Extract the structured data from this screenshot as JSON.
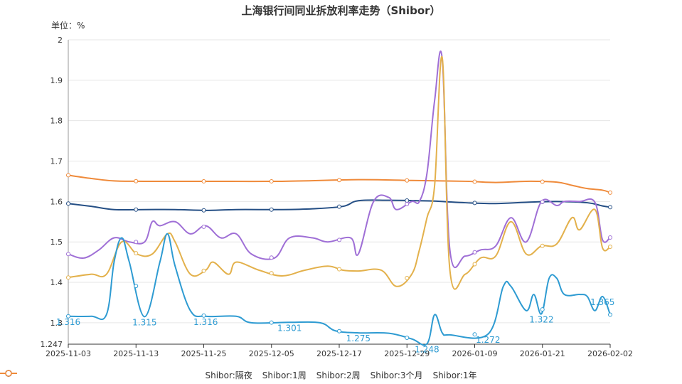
{
  "chart_data": {
    "type": "line",
    "title": "上海银行间同业拆放利率走势（Shibor）",
    "unit_label": "单位：%",
    "ylim": [
      1.247,
      2.0
    ],
    "yticks": [
      "1.247",
      "1.3",
      "1.4",
      "1.5",
      "1.6",
      "1.7",
      "1.8",
      "1.9",
      "2"
    ],
    "xticks": [
      "2025-11-03",
      "2025-11-13",
      "2025-11-25",
      "2025-12-05",
      "2025-12-17",
      "2025-12-29",
      "2026-01-09",
      "2026-01-21",
      "2026-02-02"
    ],
    "xlim_index": [
      0,
      64
    ],
    "series": [
      {
        "name": "Shibor:隔夜",
        "color": "#2e9bd2",
        "points": [
          [
            0,
            1.316
          ],
          [
            3,
            1.316
          ],
          [
            5,
            1.32
          ],
          [
            6,
            1.45
          ],
          [
            7,
            1.51
          ],
          [
            8,
            1.45
          ],
          [
            10,
            1.315
          ],
          [
            12,
            1.45
          ],
          [
            13,
            1.52
          ],
          [
            14,
            1.44
          ],
          [
            16,
            1.33
          ],
          [
            18,
            1.316
          ],
          [
            22,
            1.316
          ],
          [
            24,
            1.3
          ],
          [
            29,
            1.301
          ],
          [
            33,
            1.3
          ],
          [
            35,
            1.28
          ],
          [
            38,
            1.275
          ],
          [
            42,
            1.274
          ],
          [
            45,
            1.26
          ],
          [
            47,
            1.248
          ],
          [
            48,
            1.32
          ],
          [
            49,
            1.275
          ],
          [
            50,
            1.27
          ],
          [
            55,
            1.272
          ],
          [
            57,
            1.39
          ],
          [
            58,
            1.39
          ],
          [
            60,
            1.33
          ],
          [
            61,
            1.37
          ],
          [
            62,
            1.322
          ],
          [
            63,
            1.41
          ],
          [
            64,
            1.41
          ],
          [
            65,
            1.37
          ],
          [
            67,
            1.37
          ],
          [
            68,
            1.365
          ],
          [
            69,
            1.33
          ],
          [
            70,
            1.365
          ],
          [
            71,
            1.32
          ]
        ],
        "labels": [
          [
            0,
            1.316,
            "1.316"
          ],
          [
            10,
            1.315,
            "1.315"
          ],
          [
            18,
            1.316,
            "1.316"
          ],
          [
            29,
            1.301,
            "1.301"
          ],
          [
            38,
            1.275,
            "1.275"
          ],
          [
            47,
            1.248,
            "1.248"
          ],
          [
            55,
            1.272,
            "1.272"
          ],
          [
            62,
            1.322,
            "1.322"
          ],
          [
            70,
            1.365,
            "1.365"
          ]
        ]
      },
      {
        "name": "Shibor:1周",
        "color": "#e3b14c",
        "points": [
          [
            0,
            1.412
          ],
          [
            3,
            1.42
          ],
          [
            5,
            1.42
          ],
          [
            7,
            1.5
          ],
          [
            9,
            1.47
          ],
          [
            11,
            1.47
          ],
          [
            13,
            1.52
          ],
          [
            14,
            1.5
          ],
          [
            16,
            1.42
          ],
          [
            18,
            1.43
          ],
          [
            19,
            1.45
          ],
          [
            21,
            1.42
          ],
          [
            22,
            1.45
          ],
          [
            25,
            1.43
          ],
          [
            28,
            1.416
          ],
          [
            31,
            1.43
          ],
          [
            34,
            1.44
          ],
          [
            36,
            1.43
          ],
          [
            38,
            1.428
          ],
          [
            41,
            1.43
          ],
          [
            43,
            1.39
          ],
          [
            45,
            1.42
          ],
          [
            46,
            1.48
          ],
          [
            47,
            1.56
          ],
          [
            48,
            1.64
          ],
          [
            49,
            1.955
          ],
          [
            50,
            1.43
          ],
          [
            52,
            1.42
          ],
          [
            54,
            1.46
          ],
          [
            56,
            1.465
          ],
          [
            58,
            1.55
          ],
          [
            60,
            1.47
          ],
          [
            62,
            1.49
          ],
          [
            64,
            1.495
          ],
          [
            66,
            1.56
          ],
          [
            67,
            1.53
          ],
          [
            69,
            1.58
          ],
          [
            70,
            1.485
          ],
          [
            71,
            1.488
          ]
        ]
      },
      {
        "name": "Shibor:2周",
        "color": "#9f6fd6",
        "points": [
          [
            0,
            1.47
          ],
          [
            2,
            1.46
          ],
          [
            4,
            1.48
          ],
          [
            6,
            1.51
          ],
          [
            8,
            1.5
          ],
          [
            10,
            1.5
          ],
          [
            11,
            1.55
          ],
          [
            12,
            1.54
          ],
          [
            14,
            1.55
          ],
          [
            16,
            1.52
          ],
          [
            18,
            1.54
          ],
          [
            20,
            1.51
          ],
          [
            22,
            1.52
          ],
          [
            24,
            1.47
          ],
          [
            27,
            1.46
          ],
          [
            29,
            1.51
          ],
          [
            32,
            1.51
          ],
          [
            34,
            1.5
          ],
          [
            37,
            1.51
          ],
          [
            38,
            1.47
          ],
          [
            40,
            1.6
          ],
          [
            42,
            1.61
          ],
          [
            43,
            1.58
          ],
          [
            45,
            1.6
          ],
          [
            46,
            1.6
          ],
          [
            47,
            1.67
          ],
          [
            48,
            1.85
          ],
          [
            49,
            1.952
          ],
          [
            50,
            1.48
          ],
          [
            52,
            1.465
          ],
          [
            54,
            1.48
          ],
          [
            56,
            1.49
          ],
          [
            58,
            1.56
          ],
          [
            60,
            1.5
          ],
          [
            62,
            1.6
          ],
          [
            64,
            1.59
          ],
          [
            65,
            1.6
          ],
          [
            67,
            1.6
          ],
          [
            69,
            1.598
          ],
          [
            70,
            1.505
          ],
          [
            71,
            1.511
          ]
        ]
      },
      {
        "name": "Shibor:3个月",
        "color": "#254f85",
        "points": [
          [
            0,
            1.595
          ],
          [
            3,
            1.588
          ],
          [
            6,
            1.58
          ],
          [
            10,
            1.58
          ],
          [
            14,
            1.58
          ],
          [
            18,
            1.578
          ],
          [
            22,
            1.58
          ],
          [
            28,
            1.58
          ],
          [
            32,
            1.582
          ],
          [
            36,
            1.588
          ],
          [
            38,
            1.602
          ],
          [
            42,
            1.603
          ],
          [
            46,
            1.602
          ],
          [
            48,
            1.601
          ],
          [
            52,
            1.597
          ],
          [
            56,
            1.595
          ],
          [
            60,
            1.598
          ],
          [
            64,
            1.6
          ],
          [
            68,
            1.597
          ],
          [
            70,
            1.589
          ],
          [
            71,
            1.586
          ]
        ]
      },
      {
        "name": "Shibor:1年",
        "color": "#ef8a3a",
        "points": [
          [
            0,
            1.665
          ],
          [
            3,
            1.657
          ],
          [
            6,
            1.651
          ],
          [
            10,
            1.65
          ],
          [
            18,
            1.65
          ],
          [
            28,
            1.65
          ],
          [
            38,
            1.654
          ],
          [
            45,
            1.652
          ],
          [
            52,
            1.65
          ],
          [
            56,
            1.647
          ],
          [
            60,
            1.65
          ],
          [
            64,
            1.648
          ],
          [
            66,
            1.64
          ],
          [
            68,
            1.632
          ],
          [
            70,
            1.628
          ],
          [
            71,
            1.622
          ]
        ]
      }
    ],
    "legend_position": "bottom",
    "grid": true
  }
}
